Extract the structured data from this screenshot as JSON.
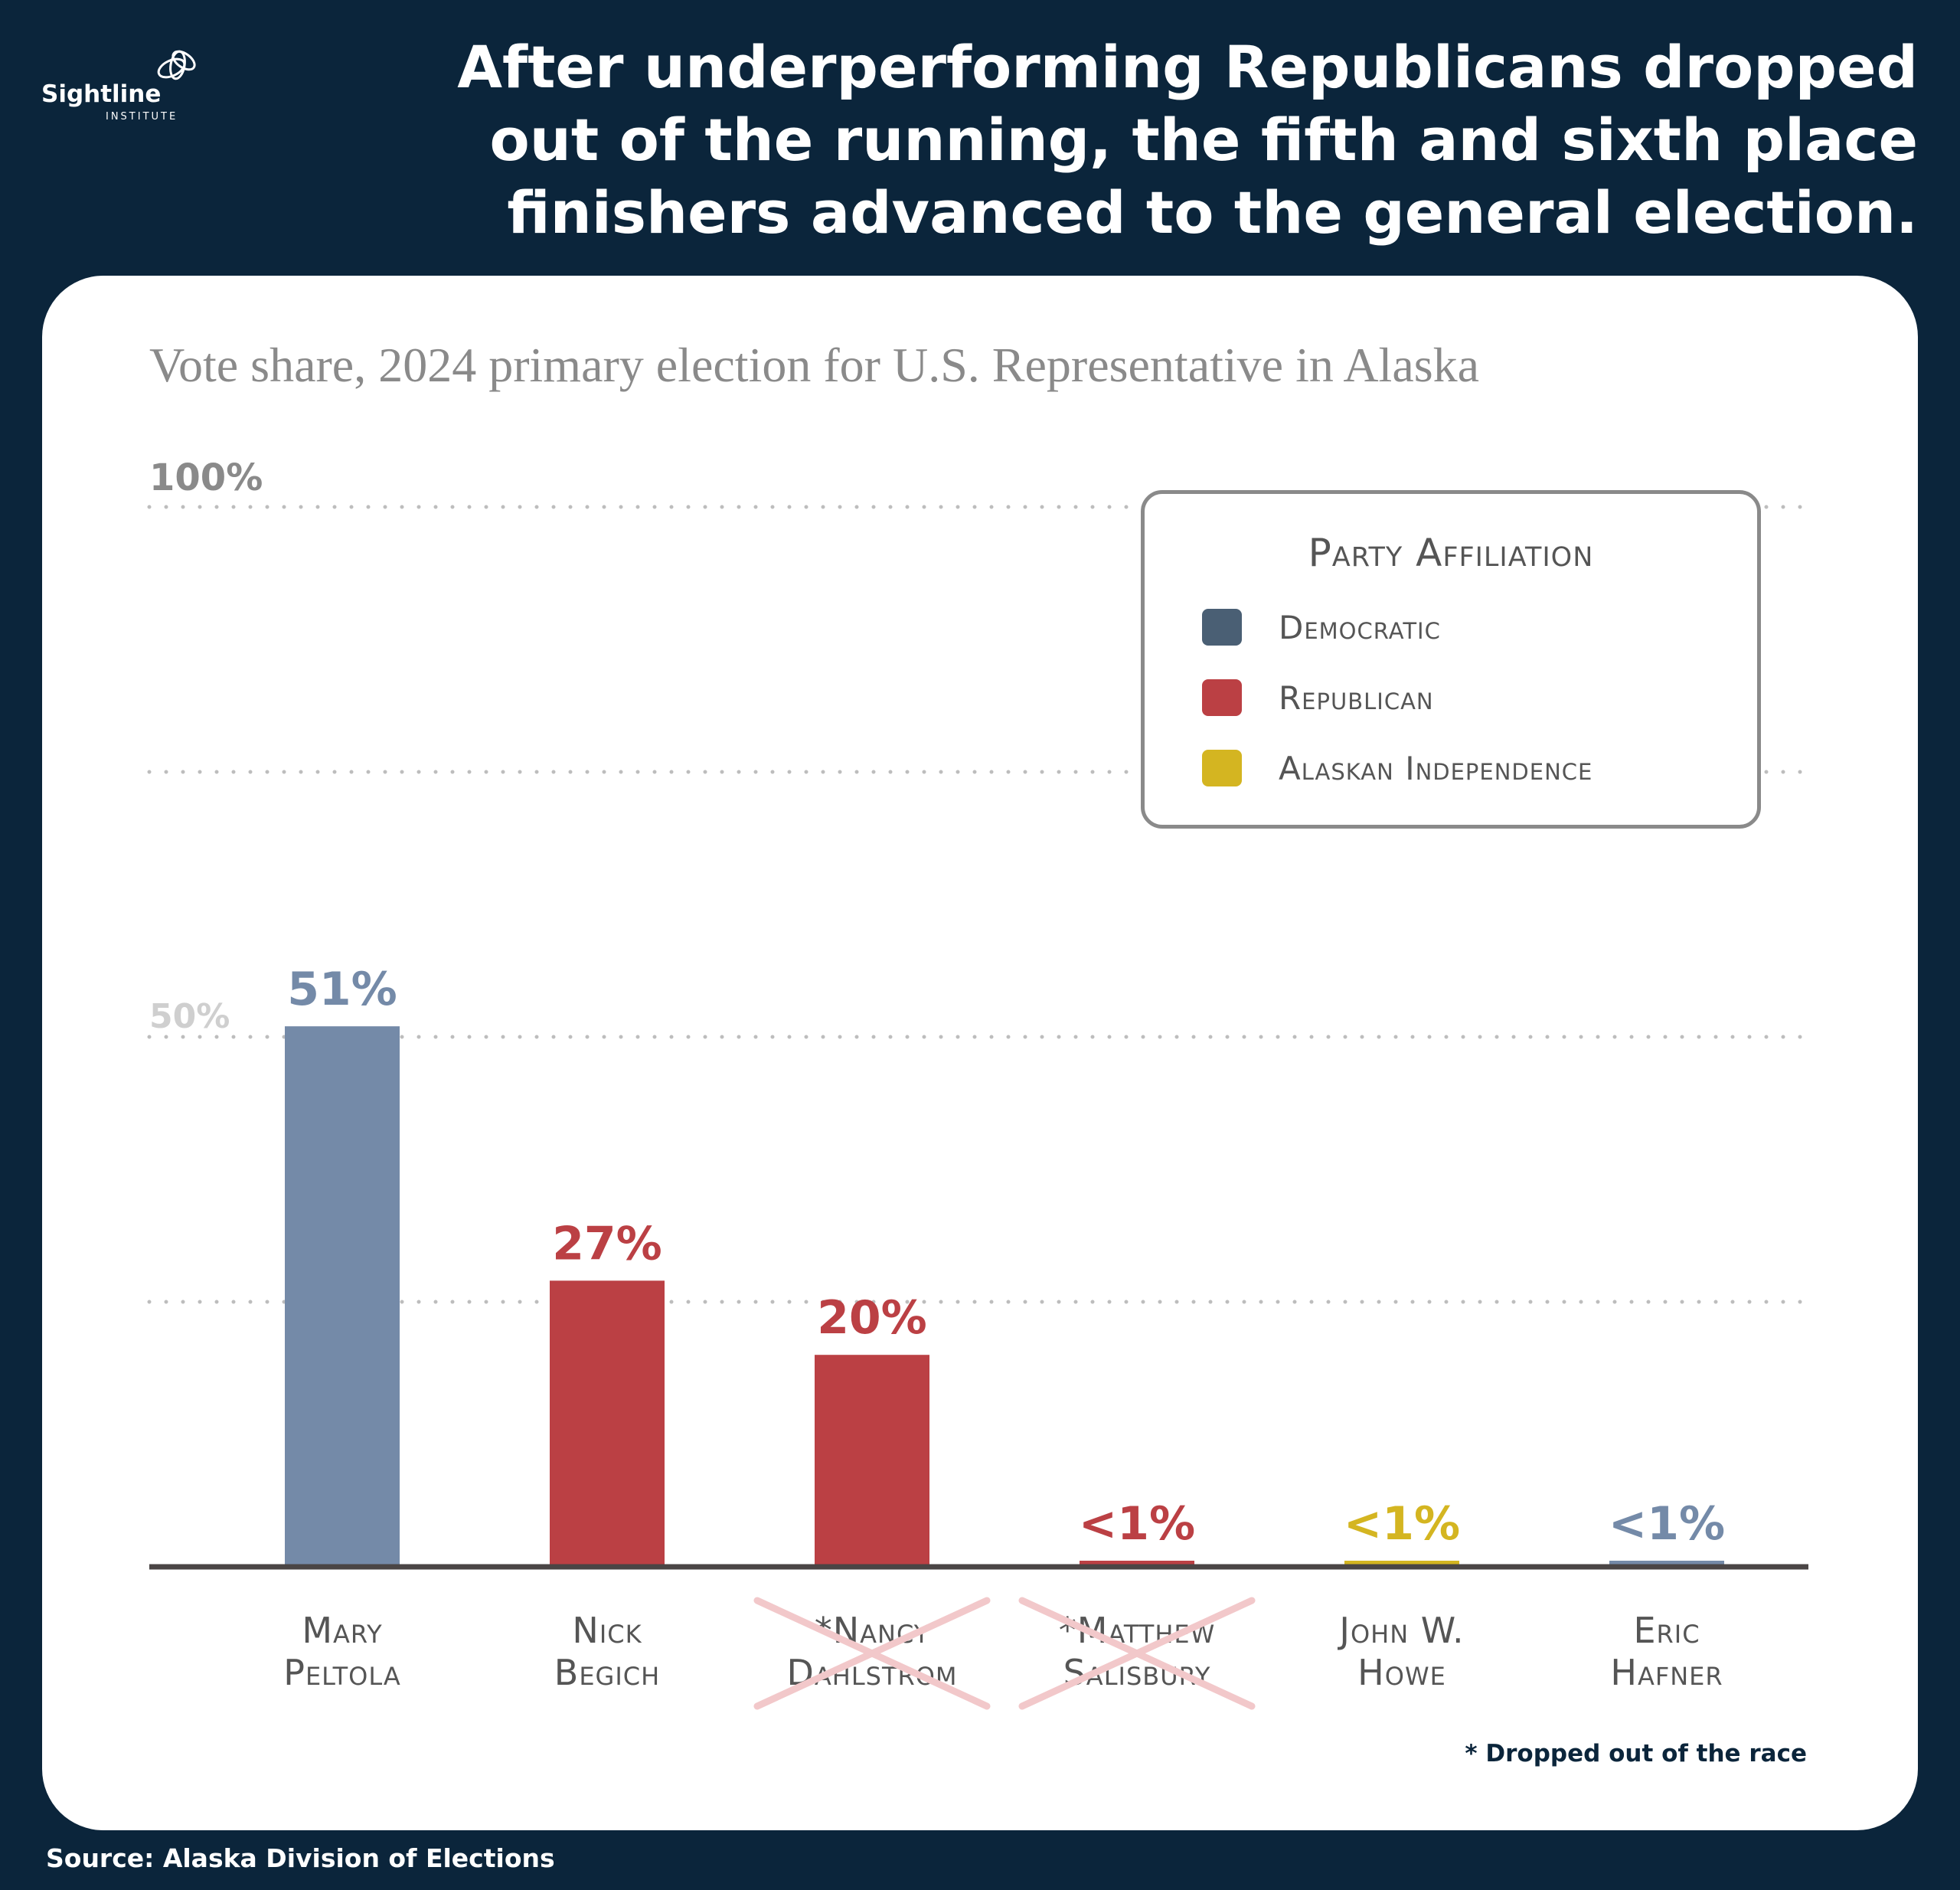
{
  "brand": {
    "name": "Sightline",
    "sub": "INSTITUTE"
  },
  "headline": "After underperforming Republicans dropped out of the running, the fifth and sixth place finishers advanced to the general election.",
  "source": "Source: Alaska Division of Elections",
  "footnote": "* Dropped out of the race",
  "colors": {
    "democratic": "#748aa8",
    "democratic_swatch": "#4a5f74",
    "republican": "#bb4044",
    "alaskan_independence": "#d4b521",
    "axis": "#4a4545",
    "grid": "#bdbdbd",
    "strike": "#f2c8ca",
    "label": "#555555"
  },
  "chart_data": {
    "type": "bar",
    "title": "Vote share, 2024 primary election for U.S. Representative in Alaska",
    "ylim": [
      0,
      100
    ],
    "y_tick_labels": [
      {
        "value": 100,
        "label": "100%"
      },
      {
        "value": 50,
        "label": "50%"
      }
    ],
    "gridlines": [
      100,
      75,
      50,
      25
    ],
    "categories": [
      {
        "line1": "Mary",
        "line2": "Peltola"
      },
      {
        "line1": "Nick",
        "line2": "Begich"
      },
      {
        "line1": "*Nancy",
        "line2": "Dahlstrom"
      },
      {
        "line1": "*Matthew",
        "line2": "Salisbury"
      },
      {
        "line1": "John W.",
        "line2": "Howe"
      },
      {
        "line1": "Eric",
        "line2": "Hafner"
      }
    ],
    "values": [
      51,
      27,
      20,
      0.5,
      0.5,
      0.5
    ],
    "value_labels": [
      "51%",
      "27%",
      "20%",
      "<1%",
      "<1%",
      "<1%"
    ],
    "parties": [
      "democratic",
      "republican",
      "republican",
      "republican",
      "alaskan_independence",
      "democratic"
    ],
    "dropped_out": [
      false,
      false,
      true,
      true,
      false,
      false
    ],
    "legend": {
      "title": "Party Affiliation",
      "placement": "top-right",
      "items": [
        {
          "key": "democratic",
          "label": "Democratic"
        },
        {
          "key": "republican",
          "label": "Republican"
        },
        {
          "key": "alaskan_independence",
          "label": "Alaskan Independence"
        }
      ]
    }
  }
}
